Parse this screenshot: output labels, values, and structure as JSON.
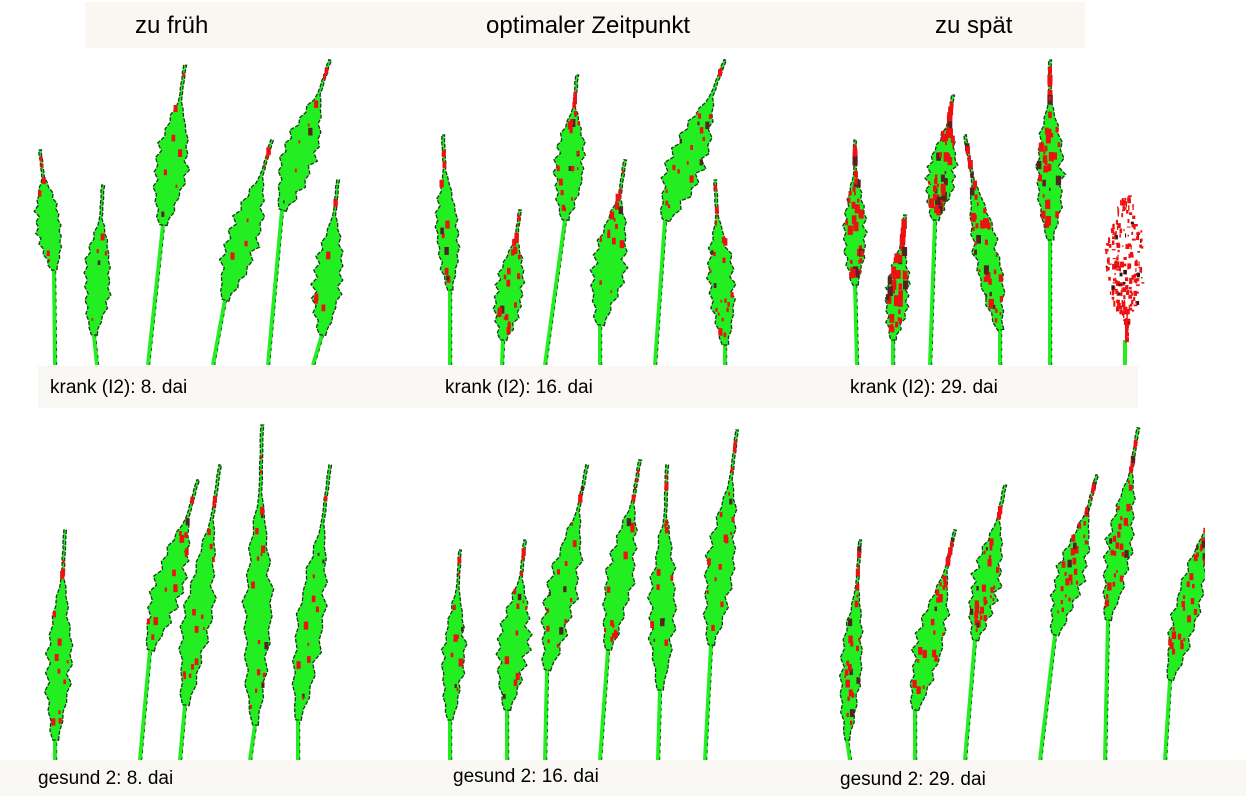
{
  "headers": [
    "zu früh",
    "optimaler Zeitpunkt",
    "zu spät"
  ],
  "captions": {
    "row1": [
      "krank (I2): 8. dai",
      "krank (I2): 16. dai",
      "krank (I2): 29. dai"
    ],
    "row2": [
      "gesund 2: 8. dai",
      "gesund 2: 16. dai",
      "gesund 2:  29. dai"
    ]
  },
  "colors": {
    "ear_green": "#22ee22",
    "outline": "#1a3a1a",
    "infection_red": "#ee1111"
  },
  "legend_meaning": {}
}
